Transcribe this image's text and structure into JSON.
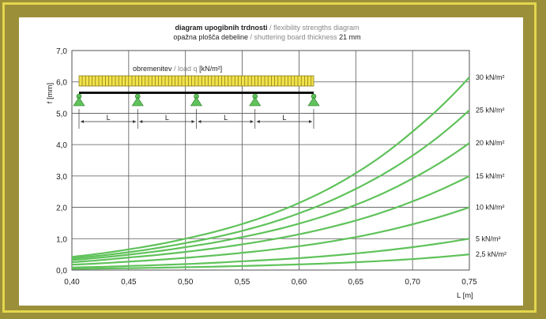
{
  "chart_data": {
    "type": "line",
    "title": {
      "main": "diagram upogibnih trdnosti",
      "main_sep": " / ",
      "main_en": "flexibility strengths diagram",
      "sub": "opažna plošča debeline",
      "sub_sep": " / ",
      "sub_en": "shuttering board thickness",
      "sub_value": " 21 mm"
    },
    "xlabel": "L [m]",
    "ylabel": "f [mm]",
    "xlim": [
      0.4,
      0.75
    ],
    "ylim": [
      0,
      7.0
    ],
    "x_ticks": [
      "0,40",
      "0,45",
      "0,50",
      "0,55",
      "0,60",
      "0,65",
      "0,70",
      "0,75"
    ],
    "y_ticks": [
      "0,0",
      "1,0",
      "2,0",
      "3,0",
      "4,0",
      "5,0",
      "6,0",
      "7,0"
    ],
    "grid": true,
    "line_color": "#5fc25a",
    "x": [
      0.4,
      0.45,
      0.5,
      0.55,
      0.6,
      0.65,
      0.7,
      0.75
    ],
    "series": [
      {
        "name": "2,5 kN/m²",
        "values": [
          0.04,
          0.06,
          0.09,
          0.13,
          0.18,
          0.25,
          0.35,
          0.5
        ]
      },
      {
        "name": "5 kN/m²",
        "values": [
          0.08,
          0.13,
          0.19,
          0.28,
          0.38,
          0.53,
          0.73,
          1.0
        ]
      },
      {
        "name": "10 kN/m²",
        "values": [
          0.17,
          0.27,
          0.39,
          0.55,
          0.76,
          1.05,
          1.46,
          2.0
        ]
      },
      {
        "name": "15 kN/m²",
        "values": [
          0.25,
          0.4,
          0.58,
          0.82,
          1.14,
          1.58,
          2.19,
          3.0
        ]
      },
      {
        "name": "20 kN/m²",
        "values": [
          0.32,
          0.49,
          0.73,
          1.05,
          1.48,
          2.08,
          2.92,
          4.05
        ]
      },
      {
        "name": "25 kN/m²",
        "values": [
          0.37,
          0.57,
          0.86,
          1.25,
          1.81,
          2.59,
          3.65,
          5.1
        ]
      },
      {
        "name": "30 kN/m²",
        "values": [
          0.42,
          0.66,
          1.0,
          1.47,
          2.14,
          3.09,
          4.42,
          6.15
        ]
      }
    ],
    "inset": {
      "load_label_main": "obremenitev",
      "load_label_sep": " / ",
      "load_label_en": "load q",
      "load_label_unit": " [kN/m²]",
      "span_label": "L",
      "span_count": 4,
      "load_color": "#f2e24a",
      "support_color": "#5fc25a"
    }
  }
}
